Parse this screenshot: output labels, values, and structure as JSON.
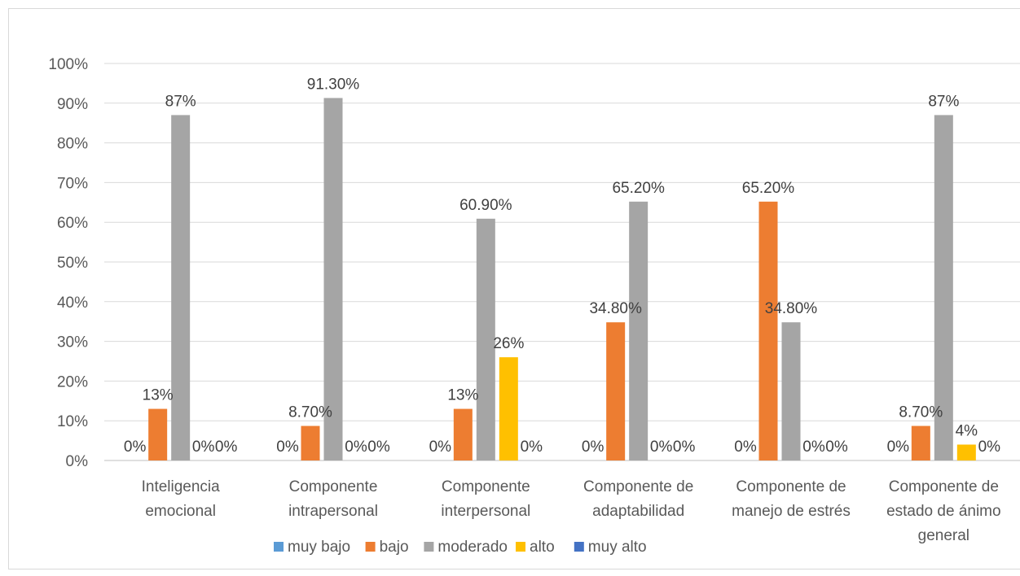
{
  "chart_data": {
    "type": "bar",
    "categories": [
      [
        "Inteligencia",
        "emocional"
      ],
      [
        "Componente",
        "intrapersonal"
      ],
      [
        "Componente",
        "interpersonal"
      ],
      [
        "Componente de",
        "adaptabilidad"
      ],
      [
        "Componente de",
        "manejo de estrés"
      ],
      [
        "Componente de",
        "estado de ánimo",
        "general"
      ]
    ],
    "series": [
      {
        "name": "muy bajo",
        "color": "#5b9bd5",
        "values": [
          0,
          0,
          0,
          0,
          0,
          0
        ],
        "labels": [
          "0%",
          "0%",
          "0%",
          "0%",
          "0%",
          "0%"
        ]
      },
      {
        "name": "bajo",
        "color": "#ed7d31",
        "values": [
          13,
          8.7,
          13,
          34.8,
          65.2,
          8.7
        ],
        "labels": [
          "13%",
          "8.70%",
          "13%",
          "34.80%",
          "65.20%",
          "8.70%"
        ]
      },
      {
        "name": "moderado",
        "color": "#a5a5a5",
        "values": [
          87,
          91.3,
          60.9,
          65.2,
          34.8,
          87
        ],
        "labels": [
          "87%",
          "91.30%",
          "60.90%",
          "65.20%",
          "34.80%",
          "87%"
        ]
      },
      {
        "name": "alto",
        "color": "#ffc000",
        "values": [
          0,
          0,
          26,
          0,
          0,
          4
        ],
        "labels": [
          "0%",
          "0%",
          "26%",
          "0%",
          "0%",
          "4%"
        ]
      },
      {
        "name": "muy alto",
        "color": "#4472c4",
        "values": [
          0,
          0,
          0,
          0,
          0,
          0
        ],
        "labels": [
          "0%",
          "0%",
          "0%",
          "0%",
          "0%",
          "0%"
        ]
      }
    ],
    "ylim": [
      0,
      100
    ],
    "yticks": [
      "0%",
      "10%",
      "20%",
      "30%",
      "40%",
      "50%",
      "60%",
      "70%",
      "80%",
      "90%",
      "100%"
    ],
    "grid": true,
    "legend_position": "bottom"
  }
}
